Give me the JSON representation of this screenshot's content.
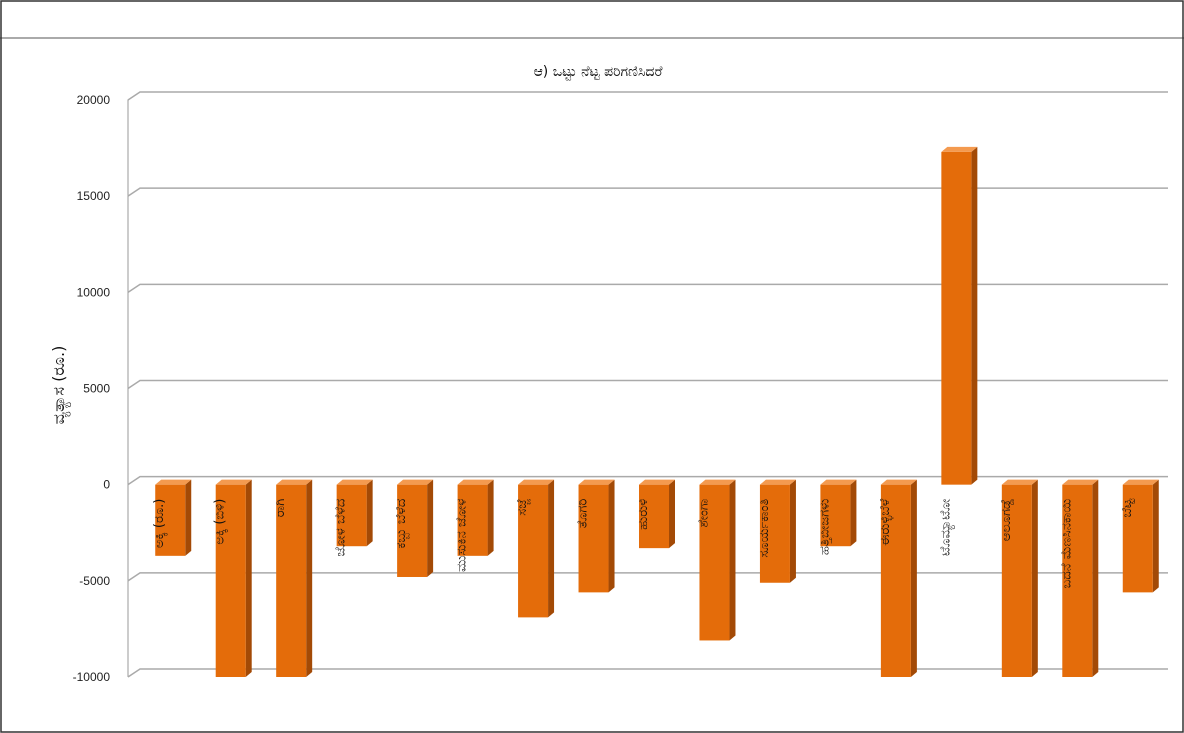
{
  "chart_data": {
    "type": "bar",
    "title": "ಆ) ಒಟ್ಟು ನೆಟ್ಟ ಪರಿಗಣಿಸಿದರೆ",
    "ylabel": "ವ್ಯತ್ಯಾಸ (ರೂ.)",
    "xlabel": "",
    "ylim": [
      -10000,
      20000
    ],
    "yticks": [
      20000,
      15000,
      10000,
      5000,
      0,
      -5000,
      -10000
    ],
    "ytick_labels": [
      "20000",
      "15000",
      "10000",
      "5000",
      "0",
      "-5000",
      "-10000"
    ],
    "grid": true,
    "bar_color": "#e46c0a",
    "categories": [
      "ಅಕ್ಕಿ (ರೂ.)",
      "ಅಕ್ಕಿ (ಬಿಳಿ)",
      "ರಾಗಿ",
      "ಜೋಳ ಬೆಳೆದ",
      "ಕಬ್ಬು ಬೆಳೆದ",
      "ಮುಸುಕಿನ ಜೋಳ",
      "ಸಜ್ಜೆ",
      "ತೊಗರಿ",
      "ಹುರುಳಿ",
      "ಶೇಂಗಾ",
      "ಸೂರ್ಯಕಾಂತಿ",
      "ಹತ್ತಿಬೀಜಗಳು",
      "ಈರುಳ್ಳಿಬೆಳೆ",
      "ಟೊಮ್ಯಾಟೋ",
      "ಆಲೂಗಡ್ಡೆ",
      "ಬದನೆ ಮೆಣಸಿನಕಾಯಿ",
      "ಬೆಟ್ಟ"
    ],
    "values": [
      -3700,
      -10000,
      -10000,
      -3200,
      -4800,
      -3700,
      -6900,
      -5600,
      -3300,
      -8100,
      -5100,
      -3200,
      -10000,
      17300,
      -10000,
      -10000,
      -5600
    ]
  }
}
